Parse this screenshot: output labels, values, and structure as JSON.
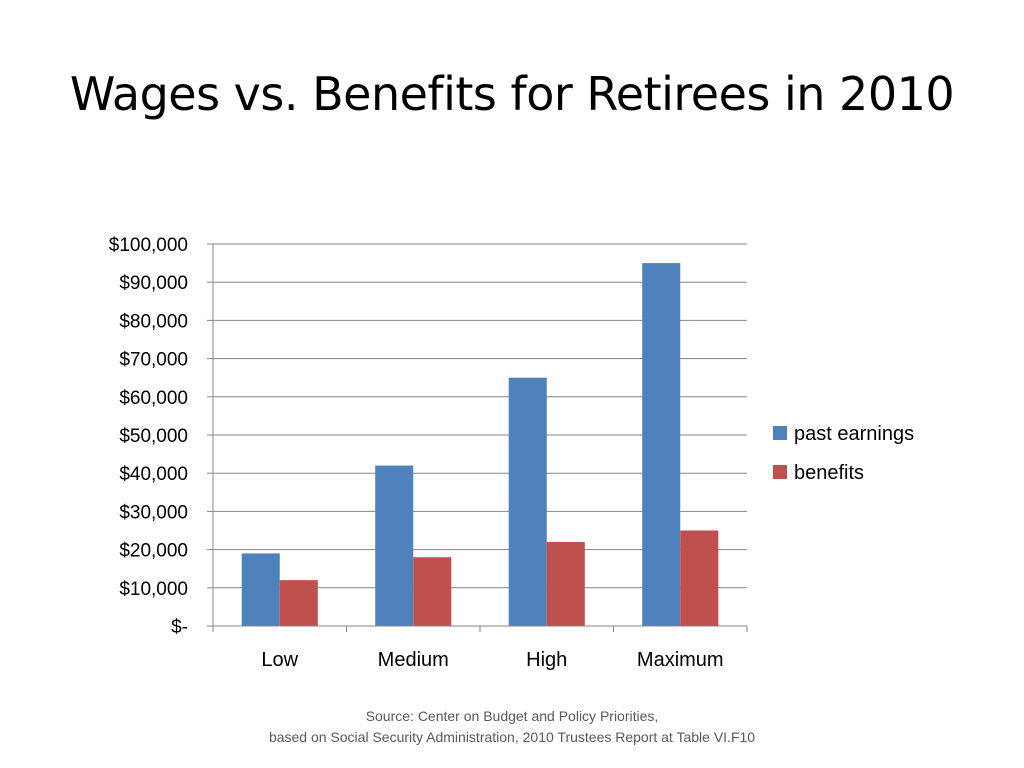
{
  "slide": {
    "title": "Wages vs. Benefits for Retirees in 2010"
  },
  "chart_data": {
    "type": "bar",
    "title": "",
    "xlabel": "",
    "ylabel": "",
    "categories": [
      "Low",
      "Medium",
      "High",
      "Maximum"
    ],
    "series": [
      {
        "name": "past earnings",
        "color": "#4F81BD",
        "values": [
          19000,
          42000,
          65000,
          95000
        ]
      },
      {
        "name": "benefits",
        "color": "#C0504D",
        "values": [
          12000,
          18000,
          22000,
          25000
        ]
      }
    ],
    "ylim": [
      0,
      100000
    ],
    "y_ticks": [
      0,
      10000,
      20000,
      30000,
      40000,
      50000,
      60000,
      70000,
      80000,
      90000,
      100000
    ],
    "y_tick_labels": [
      "$-",
      "$10,000",
      "$20,000",
      "$30,000",
      "$40,000",
      "$50,000",
      "$60,000",
      "$70,000",
      "$80,000",
      "$90,000",
      "$100,000"
    ],
    "grid": true,
    "legend_position": "right"
  },
  "source": {
    "line1": "Source: Center on Budget and Policy Priorities,",
    "line2": "based on Social Security Administration, 2010 Trustees Report at Table VI.F10"
  }
}
